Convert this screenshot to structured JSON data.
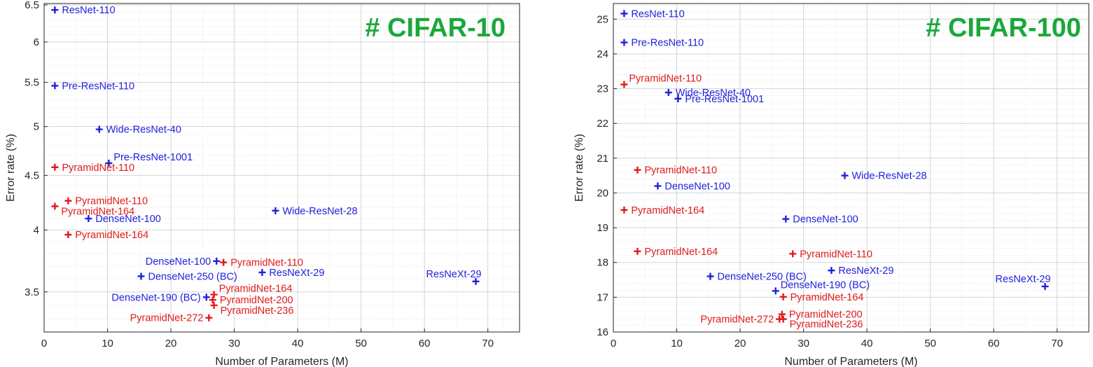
{
  "colors": {
    "blue": "#1f1fdd",
    "red": "#e01a1a",
    "title": "#1aa83a",
    "grid": "#d4d4d4"
  },
  "chart_data": [
    {
      "type": "scatter",
      "title": "# CIFAR-10",
      "xlabel": "Number of Parameters (M)",
      "ylabel": "Error rate (%)",
      "xlim": [
        0,
        75
      ],
      "ylim": [
        3.21,
        6.52
      ],
      "log_y": true,
      "grid": true,
      "xticks": [
        0,
        10,
        20,
        30,
        40,
        50,
        60,
        70
      ],
      "yticks": [
        3.5,
        4,
        4.5,
        5,
        5.5,
        6,
        6.5
      ],
      "ytick_labels": [
        "3.5",
        "4",
        "4.5",
        "5",
        "5.5",
        "6",
        "6.5"
      ],
      "points": [
        {
          "label": "ResNet-110",
          "x": 1.7,
          "y": 6.43,
          "color": "blue",
          "anchor": "right"
        },
        {
          "label": "Pre-ResNet-110",
          "x": 1.7,
          "y": 5.46,
          "color": "blue",
          "anchor": "right"
        },
        {
          "label": "Wide-ResNet-40",
          "x": 8.7,
          "y": 4.97,
          "color": "blue",
          "anchor": "right"
        },
        {
          "label": "Pre-ResNet-1001",
          "x": 10.2,
          "y": 4.62,
          "color": "blue",
          "anchor": "right-up"
        },
        {
          "label": "PyramidNet-110",
          "x": 1.7,
          "y": 4.58,
          "color": "red",
          "anchor": "right"
        },
        {
          "label": "PyramidNet-110",
          "x": 3.8,
          "y": 4.26,
          "color": "red",
          "anchor": "right"
        },
        {
          "label": "PyramidNet-164",
          "x": 1.7,
          "y": 4.21,
          "color": "red",
          "anchor": "right-down"
        },
        {
          "label": "Wide-ResNet-28",
          "x": 36.5,
          "y": 4.17,
          "color": "blue",
          "anchor": "right"
        },
        {
          "label": "DenseNet-100",
          "x": 7.0,
          "y": 4.1,
          "color": "blue",
          "anchor": "right"
        },
        {
          "label": "PyramidNet-164",
          "x": 3.8,
          "y": 3.96,
          "color": "red",
          "anchor": "right"
        },
        {
          "label": "DenseNet-100",
          "x": 27.2,
          "y": 3.74,
          "color": "blue",
          "anchor": "left"
        },
        {
          "label": "PyramidNet-110",
          "x": 28.3,
          "y": 3.73,
          "color": "red",
          "anchor": "right"
        },
        {
          "label": "ResNeXt-29",
          "x": 34.4,
          "y": 3.65,
          "color": "blue",
          "anchor": "right"
        },
        {
          "label": "DenseNet-250 (BC)",
          "x": 15.3,
          "y": 3.62,
          "color": "blue",
          "anchor": "right"
        },
        {
          "label": "ResNeXt-29",
          "x": 68.1,
          "y": 3.58,
          "color": "blue",
          "anchor": "left-up"
        },
        {
          "label": "PyramidNet-164",
          "x": 26.8,
          "y": 3.48,
          "color": "red",
          "anchor": "right-up"
        },
        {
          "label": "DenseNet-190 (BC)",
          "x": 25.6,
          "y": 3.46,
          "color": "blue",
          "anchor": "left"
        },
        {
          "label": "PyramidNet-200",
          "x": 26.6,
          "y": 3.44,
          "color": "red",
          "anchor": "right"
        },
        {
          "label": "PyramidNet-236",
          "x": 26.8,
          "y": 3.4,
          "color": "red",
          "anchor": "right-down"
        },
        {
          "label": "PyramidNet-272",
          "x": 26.0,
          "y": 3.31,
          "color": "red",
          "anchor": "left"
        }
      ]
    },
    {
      "type": "scatter",
      "title": "# CIFAR-100",
      "xlabel": "Number of Parameters (M)",
      "ylabel": "Error rate (%)",
      "xlim": [
        0,
        75
      ],
      "ylim": [
        16,
        25.45
      ],
      "log_y": false,
      "grid": true,
      "xticks": [
        0,
        10,
        20,
        30,
        40,
        50,
        60,
        70
      ],
      "yticks": [
        16,
        17,
        18,
        19,
        20,
        21,
        22,
        23,
        24,
        25
      ],
      "ytick_labels": [
        "16",
        "17",
        "18",
        "19",
        "20",
        "21",
        "22",
        "23",
        "24",
        "25"
      ],
      "points": [
        {
          "label": "ResNet-110",
          "x": 1.7,
          "y": 25.16,
          "color": "blue",
          "anchor": "right"
        },
        {
          "label": "Pre-ResNet-110",
          "x": 1.7,
          "y": 24.33,
          "color": "blue",
          "anchor": "right"
        },
        {
          "label": "PyramidNet-110",
          "x": 1.7,
          "y": 23.12,
          "color": "red",
          "anchor": "right-up"
        },
        {
          "label": "Wide-ResNet-40",
          "x": 8.7,
          "y": 22.89,
          "color": "blue",
          "anchor": "right"
        },
        {
          "label": "Pre-ResNet-1001",
          "x": 10.2,
          "y": 22.71,
          "color": "blue",
          "anchor": "right"
        },
        {
          "label": "PyramidNet-110",
          "x": 3.8,
          "y": 20.66,
          "color": "red",
          "anchor": "right"
        },
        {
          "label": "Wide-ResNet-28",
          "x": 36.5,
          "y": 20.5,
          "color": "blue",
          "anchor": "right"
        },
        {
          "label": "DenseNet-100",
          "x": 7.0,
          "y": 20.2,
          "color": "blue",
          "anchor": "right"
        },
        {
          "label": "PyramidNet-164",
          "x": 1.7,
          "y": 19.51,
          "color": "red",
          "anchor": "right"
        },
        {
          "label": "DenseNet-100",
          "x": 27.2,
          "y": 19.25,
          "color": "blue",
          "anchor": "right"
        },
        {
          "label": "PyramidNet-164",
          "x": 3.8,
          "y": 18.32,
          "color": "red",
          "anchor": "right"
        },
        {
          "label": "PyramidNet-110",
          "x": 28.3,
          "y": 18.25,
          "color": "red",
          "anchor": "right"
        },
        {
          "label": "ResNeXt-29",
          "x": 34.4,
          "y": 17.77,
          "color": "blue",
          "anchor": "right"
        },
        {
          "label": "DenseNet-250 (BC)",
          "x": 15.3,
          "y": 17.6,
          "color": "blue",
          "anchor": "right"
        },
        {
          "label": "ResNeXt-29",
          "x": 68.1,
          "y": 17.31,
          "color": "blue",
          "anchor": "left-up"
        },
        {
          "label": "DenseNet-190 (BC)",
          "x": 25.6,
          "y": 17.18,
          "color": "blue",
          "anchor": "right-up"
        },
        {
          "label": "PyramidNet-164",
          "x": 26.8,
          "y": 17.01,
          "color": "red",
          "anchor": "right"
        },
        {
          "label": "PyramidNet-200",
          "x": 26.6,
          "y": 16.51,
          "color": "red",
          "anchor": "right"
        },
        {
          "label": "PyramidNet-272",
          "x": 26.2,
          "y": 16.37,
          "color": "red",
          "anchor": "left"
        },
        {
          "label": "PyramidNet-236",
          "x": 26.8,
          "y": 16.37,
          "color": "red",
          "anchor": "right-down"
        }
      ]
    }
  ]
}
